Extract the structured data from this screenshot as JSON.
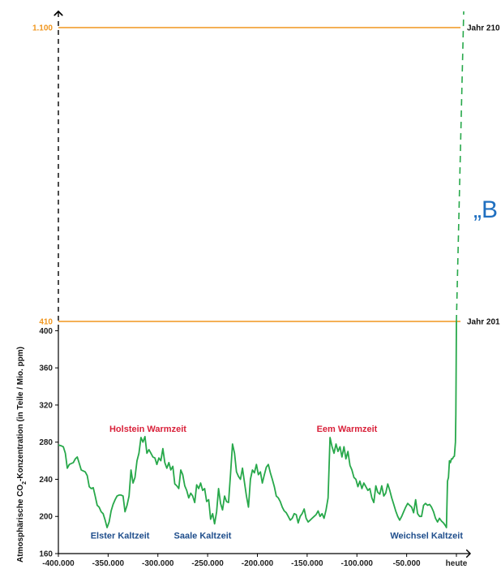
{
  "chart_data": {
    "type": "line",
    "title": "",
    "ylabel_pre": "Atmosphärische CO",
    "ylabel_sub": "2",
    "ylabel_post": "-Konzentration (in Teile / Mio. ppm)",
    "xlabel": "",
    "xlim": [
      -400000,
      0
    ],
    "ylim": [
      160,
      410
    ],
    "x_ticks": [
      {
        "value": -400000,
        "label": "-400.000"
      },
      {
        "value": -350000,
        "label": "-350.000"
      },
      {
        "value": -300000,
        "label": "-300.000"
      },
      {
        "value": -250000,
        "label": "-250.000"
      },
      {
        "value": -200000,
        "label": "-200.000"
      },
      {
        "value": -150000,
        "label": "-150.000"
      },
      {
        "value": -100000,
        "label": "-100.000"
      },
      {
        "value": -50000,
        "label": "-50.000"
      },
      {
        "value": 0,
        "label": "heute"
      }
    ],
    "y_ticks": [
      {
        "value": 160,
        "label": "160"
      },
      {
        "value": 200,
        "label": "200"
      },
      {
        "value": 240,
        "label": "240"
      },
      {
        "value": 280,
        "label": "280"
      },
      {
        "value": 320,
        "label": "320"
      },
      {
        "value": 360,
        "label": "360"
      },
      {
        "value": 400,
        "label": "400"
      }
    ],
    "reference_lines": [
      {
        "value": 1100,
        "value_label": "1.100",
        "label": "Jahr 210",
        "color": "#f0961e"
      },
      {
        "value": 410,
        "value_label": "410",
        "label": "Jahr 201",
        "color": "#f0961e"
      }
    ],
    "series": [
      {
        "color": "#27a84a",
        "points": [
          [
            -400000,
            277
          ],
          [
            -397000,
            276
          ],
          [
            -395000,
            275
          ],
          [
            -393000,
            268
          ],
          [
            -391000,
            252
          ],
          [
            -389000,
            256
          ],
          [
            -387000,
            257
          ],
          [
            -385000,
            258
          ],
          [
            -383000,
            262
          ],
          [
            -381000,
            264
          ],
          [
            -379000,
            257
          ],
          [
            -377000,
            250
          ],
          [
            -375000,
            249
          ],
          [
            -373000,
            248
          ],
          [
            -371000,
            244
          ],
          [
            -369000,
            232
          ],
          [
            -367000,
            230
          ],
          [
            -365000,
            231
          ],
          [
            -363000,
            222
          ],
          [
            -361000,
            212
          ],
          [
            -359000,
            210
          ],
          [
            -357000,
            205
          ],
          [
            -355000,
            203
          ],
          [
            -353000,
            196
          ],
          [
            -351000,
            188
          ],
          [
            -349000,
            194
          ],
          [
            -347000,
            206
          ],
          [
            -345000,
            213
          ],
          [
            -343000,
            218
          ],
          [
            -341000,
            222
          ],
          [
            -339000,
            223
          ],
          [
            -337000,
            223
          ],
          [
            -335000,
            222
          ],
          [
            -333000,
            205
          ],
          [
            -331000,
            212
          ],
          [
            -329000,
            222
          ],
          [
            -327000,
            250
          ],
          [
            -325000,
            236
          ],
          [
            -323000,
            242
          ],
          [
            -321000,
            260
          ],
          [
            -319000,
            268
          ],
          [
            -317000,
            285
          ],
          [
            -315000,
            280
          ],
          [
            -313000,
            286
          ],
          [
            -311000,
            268
          ],
          [
            -309000,
            272
          ],
          [
            -307000,
            268
          ],
          [
            -305000,
            264
          ],
          [
            -303000,
            263
          ],
          [
            -301000,
            256
          ],
          [
            -299000,
            263
          ],
          [
            -297000,
            260
          ],
          [
            -295000,
            273
          ],
          [
            -293000,
            258
          ],
          [
            -291000,
            252
          ],
          [
            -289000,
            258
          ],
          [
            -287000,
            250
          ],
          [
            -285000,
            254
          ],
          [
            -283000,
            235
          ],
          [
            -281000,
            233
          ],
          [
            -279000,
            230
          ],
          [
            -277000,
            250
          ],
          [
            -275000,
            245
          ],
          [
            -273000,
            233
          ],
          [
            -271000,
            228
          ],
          [
            -269000,
            220
          ],
          [
            -267000,
            225
          ],
          [
            -265000,
            222
          ],
          [
            -263000,
            215
          ],
          [
            -261000,
            234
          ],
          [
            -259000,
            230
          ],
          [
            -257000,
            236
          ],
          [
            -255000,
            228
          ],
          [
            -253000,
            230
          ],
          [
            -251000,
            216
          ],
          [
            -249000,
            218
          ],
          [
            -247000,
            197
          ],
          [
            -245000,
            203
          ],
          [
            -243000,
            192
          ],
          [
            -241000,
            205
          ],
          [
            -239000,
            230
          ],
          [
            -237000,
            214
          ],
          [
            -235000,
            207
          ],
          [
            -233000,
            222
          ],
          [
            -231000,
            216
          ],
          [
            -229000,
            215
          ],
          [
            -227000,
            246
          ],
          [
            -225000,
            278
          ],
          [
            -223000,
            268
          ],
          [
            -221000,
            248
          ],
          [
            -219000,
            243
          ],
          [
            -217000,
            240
          ],
          [
            -215000,
            252
          ],
          [
            -213000,
            237
          ],
          [
            -211000,
            222
          ],
          [
            -209000,
            210
          ],
          [
            -207000,
            240
          ],
          [
            -205000,
            250
          ],
          [
            -203000,
            247
          ],
          [
            -201000,
            256
          ],
          [
            -199000,
            245
          ],
          [
            -197000,
            248
          ],
          [
            -195000,
            236
          ],
          [
            -193000,
            245
          ],
          [
            -191000,
            253
          ],
          [
            -189000,
            256
          ],
          [
            -187000,
            247
          ],
          [
            -185000,
            240
          ],
          [
            -183000,
            232
          ],
          [
            -181000,
            222
          ],
          [
            -179000,
            220
          ],
          [
            -177000,
            216
          ],
          [
            -175000,
            210
          ],
          [
            -173000,
            206
          ],
          [
            -171000,
            204
          ],
          [
            -169000,
            200
          ],
          [
            -167000,
            196
          ],
          [
            -165000,
            198
          ],
          [
            -163000,
            203
          ],
          [
            -161000,
            202
          ],
          [
            -159000,
            193
          ],
          [
            -157000,
            200
          ],
          [
            -155000,
            203
          ],
          [
            -153000,
            208
          ],
          [
            -151000,
            198
          ],
          [
            -149000,
            194
          ],
          [
            -147000,
            196
          ],
          [
            -145000,
            198
          ],
          [
            -143000,
            200
          ],
          [
            -141000,
            202
          ],
          [
            -139000,
            206
          ],
          [
            -137000,
            200
          ],
          [
            -135000,
            203
          ],
          [
            -133000,
            198
          ],
          [
            -131000,
            207
          ],
          [
            -129000,
            220
          ],
          [
            -127000,
            285
          ],
          [
            -125000,
            275
          ],
          [
            -123000,
            268
          ],
          [
            -121000,
            278
          ],
          [
            -119000,
            270
          ],
          [
            -117000,
            275
          ],
          [
            -115000,
            264
          ],
          [
            -113000,
            275
          ],
          [
            -111000,
            262
          ],
          [
            -109000,
            270
          ],
          [
            -107000,
            255
          ],
          [
            -105000,
            250
          ],
          [
            -103000,
            242
          ],
          [
            -101000,
            240
          ],
          [
            -99000,
            232
          ],
          [
            -97000,
            238
          ],
          [
            -95000,
            230
          ],
          [
            -93000,
            236
          ],
          [
            -91000,
            232
          ],
          [
            -89000,
            228
          ],
          [
            -87000,
            230
          ],
          [
            -85000,
            220
          ],
          [
            -83000,
            215
          ],
          [
            -81000,
            233
          ],
          [
            -79000,
            226
          ],
          [
            -77000,
            224
          ],
          [
            -75000,
            233
          ],
          [
            -73000,
            222
          ],
          [
            -71000,
            225
          ],
          [
            -69000,
            235
          ],
          [
            -67000,
            228
          ],
          [
            -65000,
            220
          ],
          [
            -63000,
            213
          ],
          [
            -61000,
            206
          ],
          [
            -59000,
            200
          ],
          [
            -57000,
            196
          ],
          [
            -55000,
            200
          ],
          [
            -53000,
            205
          ],
          [
            -51000,
            210
          ],
          [
            -49000,
            214
          ],
          [
            -47000,
            212
          ],
          [
            -45000,
            210
          ],
          [
            -43000,
            204
          ],
          [
            -41000,
            218
          ],
          [
            -39000,
            203
          ],
          [
            -37000,
            200
          ],
          [
            -35000,
            200
          ],
          [
            -33000,
            212
          ],
          [
            -31000,
            214
          ],
          [
            -29000,
            212
          ],
          [
            -27000,
            213
          ],
          [
            -25000,
            210
          ],
          [
            -23000,
            205
          ],
          [
            -21000,
            198
          ],
          [
            -19000,
            194
          ],
          [
            -17000,
            198
          ],
          [
            -15000,
            195
          ],
          [
            -13000,
            193
          ],
          [
            -11000,
            190
          ],
          [
            -10000,
            188
          ],
          [
            -9000,
            238
          ],
          [
            -8000,
            242
          ],
          [
            -7000,
            260
          ],
          [
            -6000,
            258
          ],
          [
            -5000,
            262
          ],
          [
            -4000,
            262
          ],
          [
            -3000,
            264
          ],
          [
            -2000,
            265
          ],
          [
            -1000,
            280
          ],
          [
            -600,
            310
          ],
          [
            -300,
            350
          ],
          [
            -100,
            395
          ],
          [
            0,
            410
          ]
        ]
      }
    ],
    "projection": {
      "from": [
        0,
        410
      ],
      "to": [
        2000,
        1100
      ],
      "color": "#27a84a"
    },
    "annotations": [
      {
        "text": "Holstein Warmzeit",
        "x": -310000,
        "y": 291,
        "kind": "warm"
      },
      {
        "text": "Eem Warmzeit",
        "x": -110000,
        "y": 291,
        "kind": "warm"
      },
      {
        "text": "Elster Kaltzeit",
        "x": -338000,
        "y": 176,
        "kind": "cold"
      },
      {
        "text": "Saale Kaltzeit",
        "x": -255000,
        "y": 176,
        "kind": "cold"
      },
      {
        "text": "Weichsel Kaltzeit",
        "x": -30000,
        "y": 176,
        "kind": "cold"
      }
    ],
    "callout": {
      "text": "„B"
    },
    "grid": false,
    "legend": "none"
  }
}
